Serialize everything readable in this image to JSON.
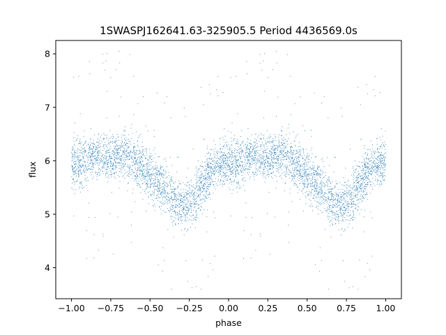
{
  "chart_data": {
    "type": "scatter",
    "title": "1SWASPJ162641.63-325905.5 Period 4436569.0s",
    "xlabel": "phase",
    "ylabel": "flux",
    "xlim": [
      -1.1,
      1.1
    ],
    "ylim": [
      3.42,
      8.25
    ],
    "xticks": [
      -1.0,
      -0.75,
      -0.5,
      -0.25,
      0.0,
      0.25,
      0.5,
      0.75,
      1.0
    ],
    "xtick_labels": [
      "−1.00",
      "−0.75",
      "−0.50",
      "−0.25",
      "0.00",
      "0.25",
      "0.50",
      "0.75",
      "1.00"
    ],
    "yticks": [
      4,
      5,
      6,
      7,
      8
    ],
    "ytick_labels": [
      "4",
      "5",
      "6",
      "7",
      "8"
    ],
    "grid": false,
    "legend": "none",
    "series": [
      {
        "color": "#1f77b4",
        "marker": "point",
        "profile_phase": [
          0.0,
          0.05,
          0.1,
          0.15,
          0.2,
          0.25,
          0.3,
          0.35,
          0.4,
          0.45,
          0.5,
          0.55,
          0.6,
          0.65,
          0.7,
          0.75,
          0.8,
          0.85,
          0.9,
          0.95,
          1.0
        ],
        "profile_flux": [
          5.95,
          5.95,
          6.0,
          6.1,
          6.1,
          6.05,
          6.1,
          6.1,
          6.0,
          5.9,
          5.7,
          5.6,
          5.5,
          5.25,
          5.15,
          5.2,
          5.4,
          5.6,
          5.9,
          5.95,
          5.95
        ],
        "profile_spread": [
          0.35,
          0.38,
          0.35,
          0.32,
          0.3,
          0.3,
          0.3,
          0.35,
          0.38,
          0.38,
          0.35,
          0.35,
          0.38,
          0.35,
          0.32,
          0.35,
          0.38,
          0.38,
          0.35,
          0.35,
          0.35
        ],
        "repeated_over_phase": [
          -1.0,
          1.0
        ]
      }
    ]
  }
}
